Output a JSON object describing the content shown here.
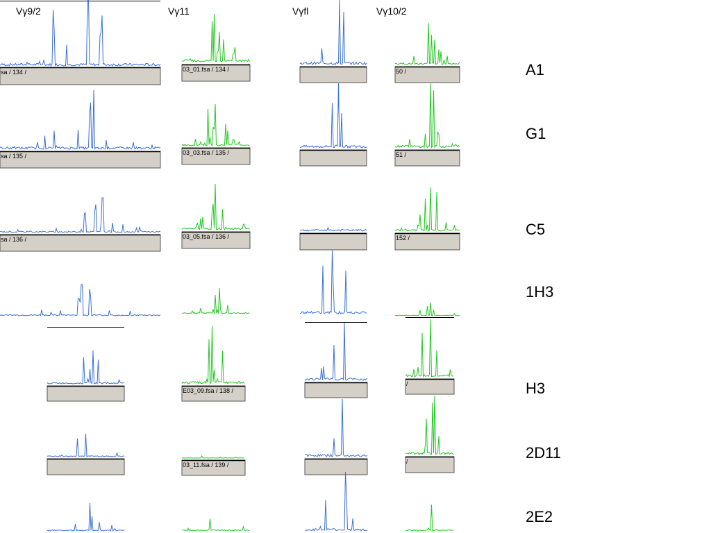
{
  "column_labels": [
    "Vγ9/2",
    "Vγ11",
    "Vγfl",
    "Vγ10/2"
  ],
  "row_labels": [
    "A1",
    "G1",
    "C5",
    "1H3",
    "H3",
    "2D11",
    "2E2"
  ],
  "captions": [
    [
      "sa / 134 /",
      "03_01.fsa / 134 /",
      "50 /"
    ],
    [
      "sa / 135 /",
      "03_03.fsa / 135 /",
      "51 /"
    ],
    [
      "sa / 136 /",
      "03_05.fsa / 136 /",
      "152 /"
    ],
    [
      "E03_09.fsa / 138 /",
      "/"
    ],
    [
      "03_11.fsa / 139 /",
      "/"
    ]
  ]
}
